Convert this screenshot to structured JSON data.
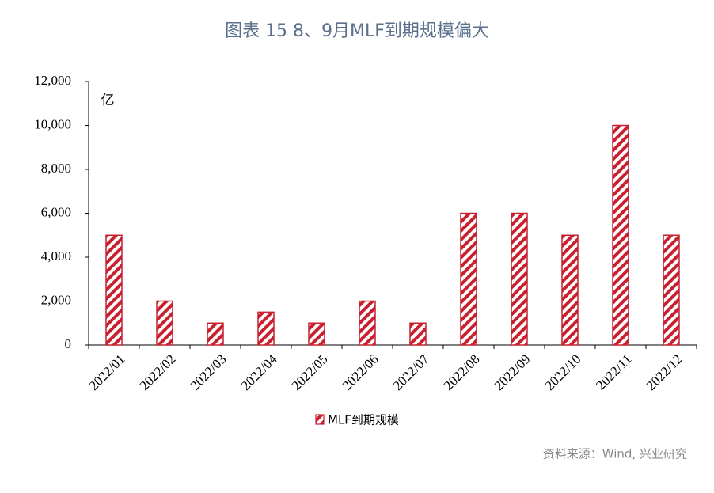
{
  "chart_data": {
    "type": "bar",
    "title": "图表 15  8、9月MLF到期规模偏大",
    "unit": "亿",
    "categories": [
      "2022/01",
      "2022/02",
      "2022/03",
      "2022/04",
      "2022/05",
      "2022/06",
      "2022/07",
      "2022/08",
      "2022/09",
      "2022/10",
      "2022/11",
      "2022/12"
    ],
    "series": [
      {
        "name": "MLF到期规模",
        "color": "#c8202f",
        "values": [
          5000,
          2000,
          1000,
          1500,
          1000,
          2000,
          1000,
          6000,
          6000,
          5000,
          10000,
          5000
        ]
      }
    ],
    "ylim": [
      0,
      12000
    ],
    "yticks": [
      0,
      {
        "value": 2000,
        "label": "2,000"
      },
      {
        "value": 4000,
        "label": "4,000"
      },
      {
        "value": 6000,
        "label": "6,000"
      },
      {
        "value": 8000,
        "label": "8,000"
      },
      {
        "value": 10000,
        "label": "10,000"
      },
      {
        "value": 12000,
        "label": "12,000"
      }
    ],
    "grid": false,
    "legend": "bottom",
    "source": "资料来源：Wind, 兴业研究"
  }
}
